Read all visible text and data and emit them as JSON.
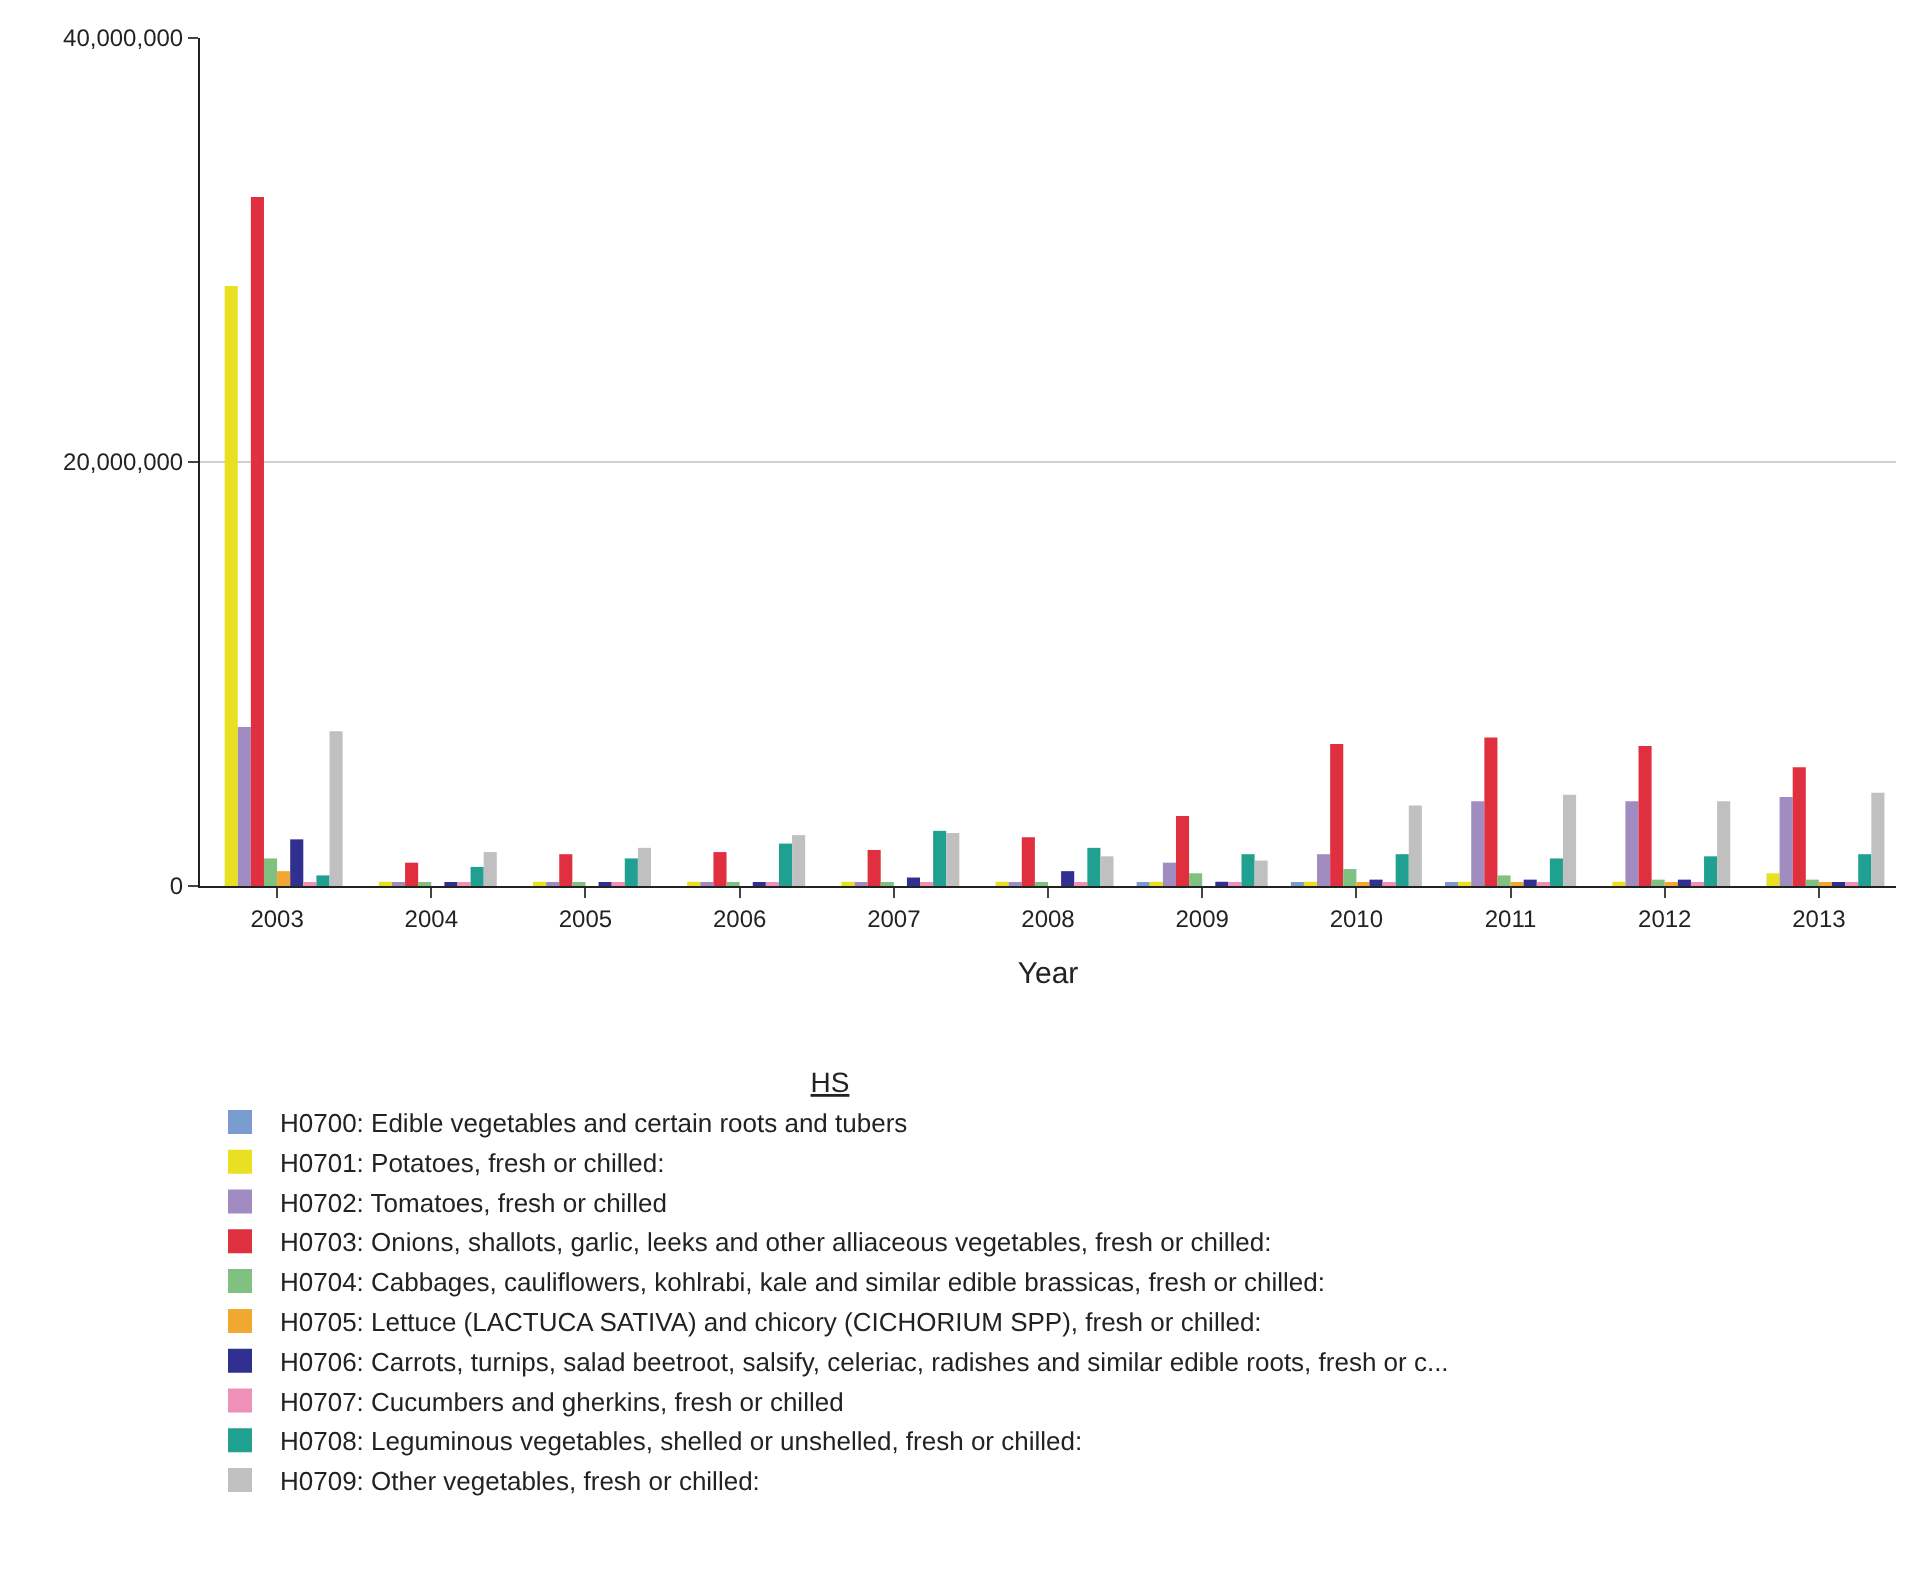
{
  "chart_data": {
    "type": "bar",
    "xlabel": "Year",
    "legend_title": "HS",
    "legend": "bottom",
    "grid": "y",
    "categories": [
      "2003",
      "2004",
      "2005",
      "2006",
      "2007",
      "2008",
      "2009",
      "2010",
      "2011",
      "2012",
      "2013"
    ],
    "ylim": [
      0,
      40000000
    ],
    "yticks": [
      {
        "value": 0,
        "label": "0"
      },
      {
        "value": 20000000,
        "label": "20,000,000"
      },
      {
        "value": 40000000,
        "label": "40,000,000"
      }
    ],
    "series": [
      {
        "name": "H0700: Edible vegetables and certain roots and tubers",
        "color": "#7a9ccf",
        "values": [
          0,
          0,
          0,
          0,
          0,
          0,
          100000,
          100000,
          100000,
          0,
          0
        ]
      },
      {
        "name": "H0701: Potatoes, fresh or chilled:",
        "color": "#e8e020",
        "values": [
          28300000,
          200000,
          200000,
          200000,
          200000,
          200000,
          200000,
          200000,
          200000,
          200000,
          600000
        ]
      },
      {
        "name": "H0702: Tomatoes, fresh or chilled",
        "color": "#a08cc0",
        "values": [
          7500000,
          100000,
          100000,
          100000,
          100000,
          100000,
          1100000,
          1500000,
          4000000,
          4000000,
          4200000
        ]
      },
      {
        "name": "H0703: Onions, shallots, garlic, leeks and other alliaceous vegetables, fresh or chilled:",
        "color": "#e03040",
        "values": [
          32500000,
          1100000,
          1500000,
          1600000,
          1700000,
          2300000,
          3300000,
          6700000,
          7000000,
          6600000,
          5600000
        ]
      },
      {
        "name": "H0704: Cabbages, cauliflowers, kohlrabi, kale and similar edible brassicas, fresh or chilled:",
        "color": "#80c080",
        "values": [
          1300000,
          100000,
          100000,
          100000,
          100000,
          100000,
          600000,
          800000,
          500000,
          300000,
          300000
        ]
      },
      {
        "name": "H0705: Lettuce (LACTUCA SATIVA) and chicory (CICHORIUM SPP), fresh or chilled:",
        "color": "#f0a830",
        "values": [
          700000,
          0,
          0,
          0,
          0,
          0,
          0,
          100000,
          100000,
          100000,
          100000
        ]
      },
      {
        "name": "H0706: Carrots, turnips, salad beetroot, salsify, celeriac, radishes and similar edible roots, fresh or c...",
        "color": "#303090",
        "values": [
          2200000,
          100000,
          100000,
          100000,
          400000,
          700000,
          200000,
          300000,
          300000,
          300000,
          100000
        ]
      },
      {
        "name": "H0707: Cucumbers and gherkins, fresh or chilled",
        "color": "#f090b8",
        "values": [
          100000,
          100000,
          100000,
          100000,
          100000,
          100000,
          100000,
          100000,
          100000,
          100000,
          100000
        ]
      },
      {
        "name": "H0708: Leguminous vegetables, shelled or unshelled, fresh or chilled:",
        "color": "#20a090",
        "values": [
          500000,
          900000,
          1300000,
          2000000,
          2600000,
          1800000,
          1500000,
          1500000,
          1300000,
          1400000,
          1500000
        ]
      },
      {
        "name": "H0709: Other vegetables, fresh or chilled:",
        "color": "#c0c0c0",
        "values": [
          7300000,
          1600000,
          1800000,
          2400000,
          2500000,
          1400000,
          1200000,
          3800000,
          4300000,
          4000000,
          4400000
        ]
      }
    ]
  }
}
